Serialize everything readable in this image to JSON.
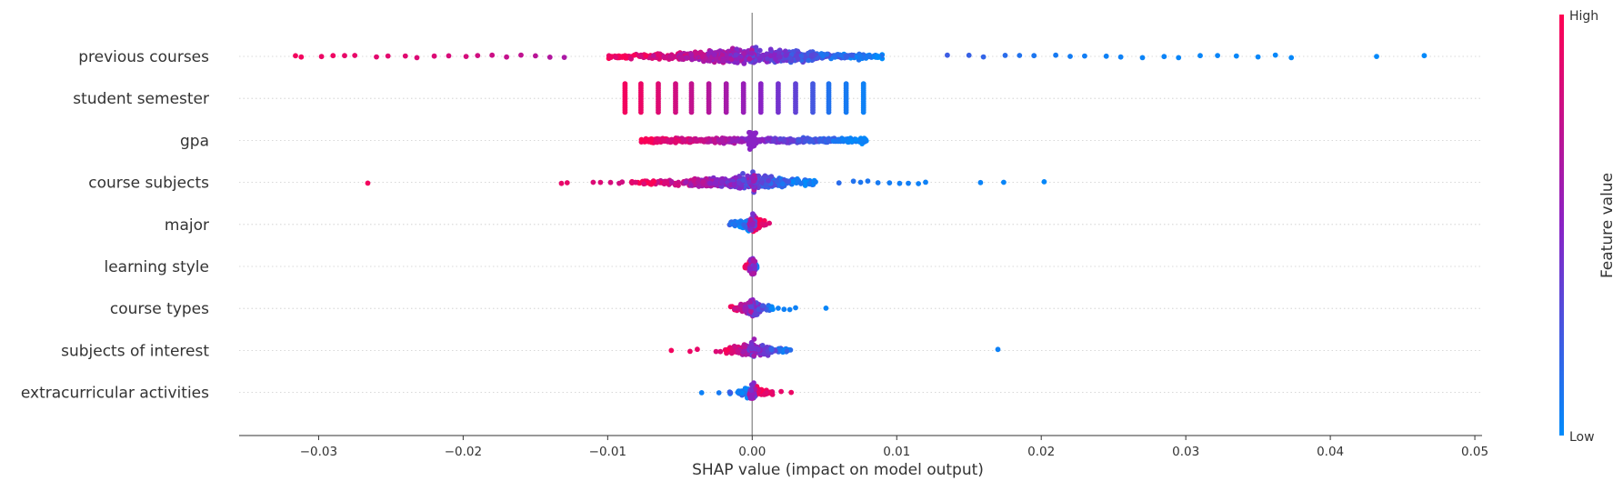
{
  "chart_data": {
    "type": "scatter",
    "subtype": "shap-beeswarm",
    "title": "",
    "xlabel": "SHAP value (impact on model output)",
    "ylabel": "",
    "xlim": [
      -0.0355,
      0.0505
    ],
    "xticks": [
      -0.03,
      -0.02,
      -0.01,
      0.0,
      0.01,
      0.02,
      0.03,
      0.04,
      0.05
    ],
    "xtick_labels": [
      "−0.03",
      "−0.02",
      "−0.01",
      "0.00",
      "0.01",
      "0.02",
      "0.03",
      "0.04",
      "0.05"
    ],
    "grid": false,
    "features": [
      {
        "name": "previous courses",
        "min": -0.0316,
        "max": 0.0465,
        "core_min": -0.01,
        "core_max": 0.009,
        "points": [
          [
            -0.0316,
            0.95
          ],
          [
            -0.0312,
            0.95
          ],
          [
            -0.0298,
            0.92
          ],
          [
            -0.029,
            0.93
          ],
          [
            -0.0282,
            0.9
          ],
          [
            -0.0275,
            0.9
          ],
          [
            -0.026,
            0.88
          ],
          [
            -0.0252,
            0.88
          ],
          [
            -0.024,
            0.87
          ],
          [
            -0.0232,
            0.85
          ],
          [
            -0.022,
            0.85
          ],
          [
            -0.021,
            0.83
          ],
          [
            -0.0198,
            0.82
          ],
          [
            -0.019,
            0.8
          ],
          [
            -0.018,
            0.78
          ],
          [
            -0.017,
            0.75
          ],
          [
            -0.016,
            0.73
          ],
          [
            -0.015,
            0.7
          ],
          [
            -0.014,
            0.67
          ],
          [
            -0.013,
            0.64
          ],
          [
            0.0135,
            0.22
          ],
          [
            0.015,
            0.2
          ],
          [
            0.016,
            0.18
          ],
          [
            0.0175,
            0.15
          ],
          [
            0.0185,
            0.12
          ],
          [
            0.0195,
            0.1
          ],
          [
            0.021,
            0.08
          ],
          [
            0.022,
            0.07
          ],
          [
            0.023,
            0.06
          ],
          [
            0.0245,
            0.05
          ],
          [
            0.0255,
            0.05
          ],
          [
            0.027,
            0.04
          ],
          [
            0.0285,
            0.04
          ],
          [
            0.0295,
            0.03
          ],
          [
            0.031,
            0.03
          ],
          [
            0.0322,
            0.03
          ],
          [
            0.0335,
            0.02
          ],
          [
            0.035,
            0.02
          ],
          [
            0.0362,
            0.02
          ],
          [
            0.0373,
            0.02
          ],
          [
            0.0432,
            0.01
          ],
          [
            0.0465,
            0.01
          ]
        ]
      },
      {
        "name": "student semester",
        "stripes": [
          [
            -0.0088,
            0.95
          ],
          [
            -0.0077,
            0.92
          ],
          [
            -0.0065,
            0.86
          ],
          [
            -0.0053,
            0.8
          ],
          [
            -0.0042,
            0.74
          ],
          [
            -0.003,
            0.68
          ],
          [
            -0.0018,
            0.62
          ],
          [
            -0.0006,
            0.56
          ],
          [
            0.0006,
            0.5
          ],
          [
            0.0018,
            0.42
          ],
          [
            0.003,
            0.35
          ],
          [
            0.0042,
            0.25
          ],
          [
            0.0053,
            0.12
          ],
          [
            0.0065,
            0.08
          ],
          [
            0.0077,
            0.05
          ]
        ]
      },
      {
        "name": "gpa",
        "min": -0.0077,
        "max": 0.008,
        "core_min": -0.0077,
        "core_max": 0.008
      },
      {
        "name": "course subjects",
        "min": -0.0266,
        "max": 0.0202,
        "core_min": -0.0085,
        "core_max": 0.0045,
        "points": [
          [
            -0.0266,
            0.95
          ],
          [
            -0.0132,
            0.9
          ],
          [
            -0.0128,
            0.9
          ],
          [
            -0.011,
            0.85
          ],
          [
            -0.0105,
            0.85
          ],
          [
            -0.0098,
            0.82
          ],
          [
            -0.0092,
            0.8
          ],
          [
            -0.009,
            0.8
          ],
          [
            0.006,
            0.15
          ],
          [
            0.007,
            0.12
          ],
          [
            0.0075,
            0.1
          ],
          [
            0.008,
            0.1
          ],
          [
            0.0087,
            0.08
          ],
          [
            0.0095,
            0.07
          ],
          [
            0.0102,
            0.06
          ],
          [
            0.0108,
            0.06
          ],
          [
            0.0115,
            0.05
          ],
          [
            0.012,
            0.05
          ],
          [
            0.0158,
            0.04
          ],
          [
            0.0174,
            0.03
          ],
          [
            0.0202,
            0.02
          ]
        ]
      },
      {
        "name": "major",
        "min": -0.0018,
        "max": 0.0012,
        "core_min": -0.0018,
        "core_max": 0.0012,
        "hi_side": "positive"
      },
      {
        "name": "learning style",
        "min": -0.0006,
        "max": 0.0005,
        "core_min": -0.0006,
        "core_max": 0.0005,
        "hi_side": "negative"
      },
      {
        "name": "course types",
        "min": -0.0016,
        "max": 0.0051,
        "core_min": -0.0016,
        "core_max": 0.0015,
        "points": [
          [
            0.0018,
            0.05
          ],
          [
            0.0022,
            0.05
          ],
          [
            0.0026,
            0.05
          ],
          [
            0.003,
            0.05
          ],
          [
            0.0051,
            0.03
          ]
        ]
      },
      {
        "name": "subjects of interest",
        "min": -0.0056,
        "max": 0.017,
        "core_min": -0.002,
        "core_max": 0.0028,
        "points": [
          [
            -0.0056,
            0.95
          ],
          [
            -0.0043,
            0.92
          ],
          [
            -0.0038,
            0.9
          ],
          [
            -0.0025,
            0.85
          ],
          [
            -0.0022,
            0.85
          ],
          [
            0.017,
            0.05
          ]
        ]
      },
      {
        "name": "extracurricular activities",
        "min": -0.0035,
        "max": 0.0027,
        "core_min": -0.0016,
        "core_max": 0.0016,
        "points": [
          [
            -0.0035,
            0.05
          ],
          [
            -0.0023,
            0.08
          ],
          [
            0.0027,
            0.92
          ],
          [
            0.002,
            0.9
          ]
        ],
        "hi_side": "positive"
      }
    ],
    "colorbar": {
      "label": "Feature value",
      "high_label": "High",
      "low_label": "Low",
      "colors": {
        "high": "#ff0052",
        "mid": "#8a22c5",
        "low": "#008bfb"
      }
    },
    "zero_line_color": "#999999"
  }
}
